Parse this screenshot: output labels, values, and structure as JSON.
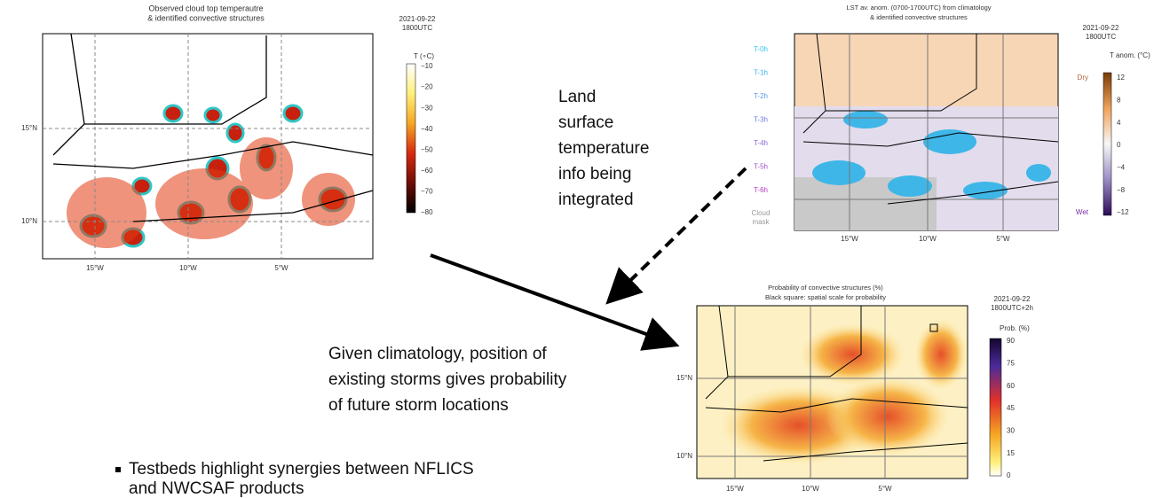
{
  "panels": [
    {
      "title": [
        "Observed cloud top temperautre",
        "& identified convective structures"
      ],
      "date": [
        "2021-09-22",
        "1800UTC"
      ],
      "colorbar": {
        "label": "T (∘C)",
        "ticks": [
          "−10",
          "−20",
          "−30",
          "−40",
          "−50",
          "−60",
          "−70",
          "−80"
        ]
      },
      "lat_labels": [
        "15°N",
        "10°N"
      ],
      "lon_labels": [
        "15°W",
        "10°W",
        "5°W"
      ]
    },
    {
      "title": [
        "LST av. anom. (0700-1700UTC) from climatology",
        "& identified convective structures"
      ],
      "date": [
        "2021-09-22",
        "1800UTC"
      ],
      "colorbar": {
        "label": "T anom. (°C)",
        "ticks": [
          "12",
          "8",
          "4",
          "0",
          "−4",
          "−8",
          "−12"
        ],
        "top": "Dry",
        "bottom": "Wet"
      },
      "legend": [
        "T-0h",
        "T-1h",
        "T-2h",
        "T-3h",
        "T-4h",
        "T-5h",
        "T-6h"
      ],
      "cloud_mask": [
        "Cloud",
        "mask"
      ],
      "lon_labels": [
        "15°W",
        "10°W",
        "5°W"
      ]
    },
    {
      "title": [
        "Probability of convective structures (%)",
        "Black square: spatial scale for probability"
      ],
      "date": [
        "2021-09-22",
        "1800UTC+2h"
      ],
      "colorbar": {
        "label": "Prob. (%)",
        "ticks": [
          "90",
          "75",
          "60",
          "45",
          "30",
          "15",
          "0"
        ]
      },
      "lat_labels": [
        "15°N",
        "10°N"
      ],
      "lon_labels": [
        "15°W",
        "10°W",
        "5°W"
      ]
    }
  ],
  "annotations": {
    "land_surface": [
      "Land",
      "surface",
      "temperature",
      "info being",
      "integrated"
    ],
    "climatology": [
      "Given climatology, position of",
      "existing storms gives probability",
      "of future storm locations"
    ]
  },
  "bullet": [
    "Testbeds highlight synergies between NFLICS",
    "and NWCSAF products"
  ]
}
